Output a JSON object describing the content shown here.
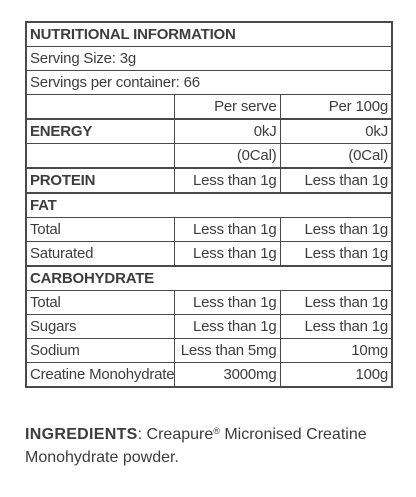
{
  "title": "NUTRITIONAL INFORMATION",
  "serving_size": "Serving Size: 3g",
  "servings_per_container": "Servings per container: 66",
  "columns": {
    "per_serve": "Per serve",
    "per_100g": "Per 100g"
  },
  "rows": {
    "energy": {
      "label": "ENERGY",
      "per_serve": "0kJ",
      "per_100g": "0kJ"
    },
    "energy_cal": {
      "per_serve": "(0Cal)",
      "per_100g": "(0Cal)"
    },
    "protein": {
      "label": "PROTEIN",
      "per_serve": "Less than 1g",
      "per_100g": "Less than 1g"
    },
    "fat_heading": {
      "label": "FAT"
    },
    "fat_total": {
      "label": "Total",
      "per_serve": "Less than 1g",
      "per_100g": "Less than 1g"
    },
    "fat_saturated": {
      "label": "Saturated",
      "per_serve": "Less than 1g",
      "per_100g": "Less than 1g"
    },
    "carb_heading": {
      "label": "CARBOHYDRATE"
    },
    "carb_total": {
      "label": "Total",
      "per_serve": "Less than 1g",
      "per_100g": "Less than 1g"
    },
    "sugars": {
      "label": "Sugars",
      "per_serve": "Less than 1g",
      "per_100g": "Less than 1g"
    },
    "sodium": {
      "label": "Sodium",
      "per_serve": "Less than 5mg",
      "per_100g": "10mg"
    },
    "creatine": {
      "label": "Creatine Monohydrate",
      "per_serve": "3000mg",
      "per_100g": "100g"
    }
  },
  "ingredients": {
    "heading": "INGREDIENTS",
    "colon": ": ",
    "brand": "Creapure",
    "trademark": "®",
    "text": " Micronised Creatine Monohydrate powder."
  },
  "colors": {
    "text": "#3d3d3d",
    "border": "#4a4a4a",
    "background": "#ffffff"
  }
}
